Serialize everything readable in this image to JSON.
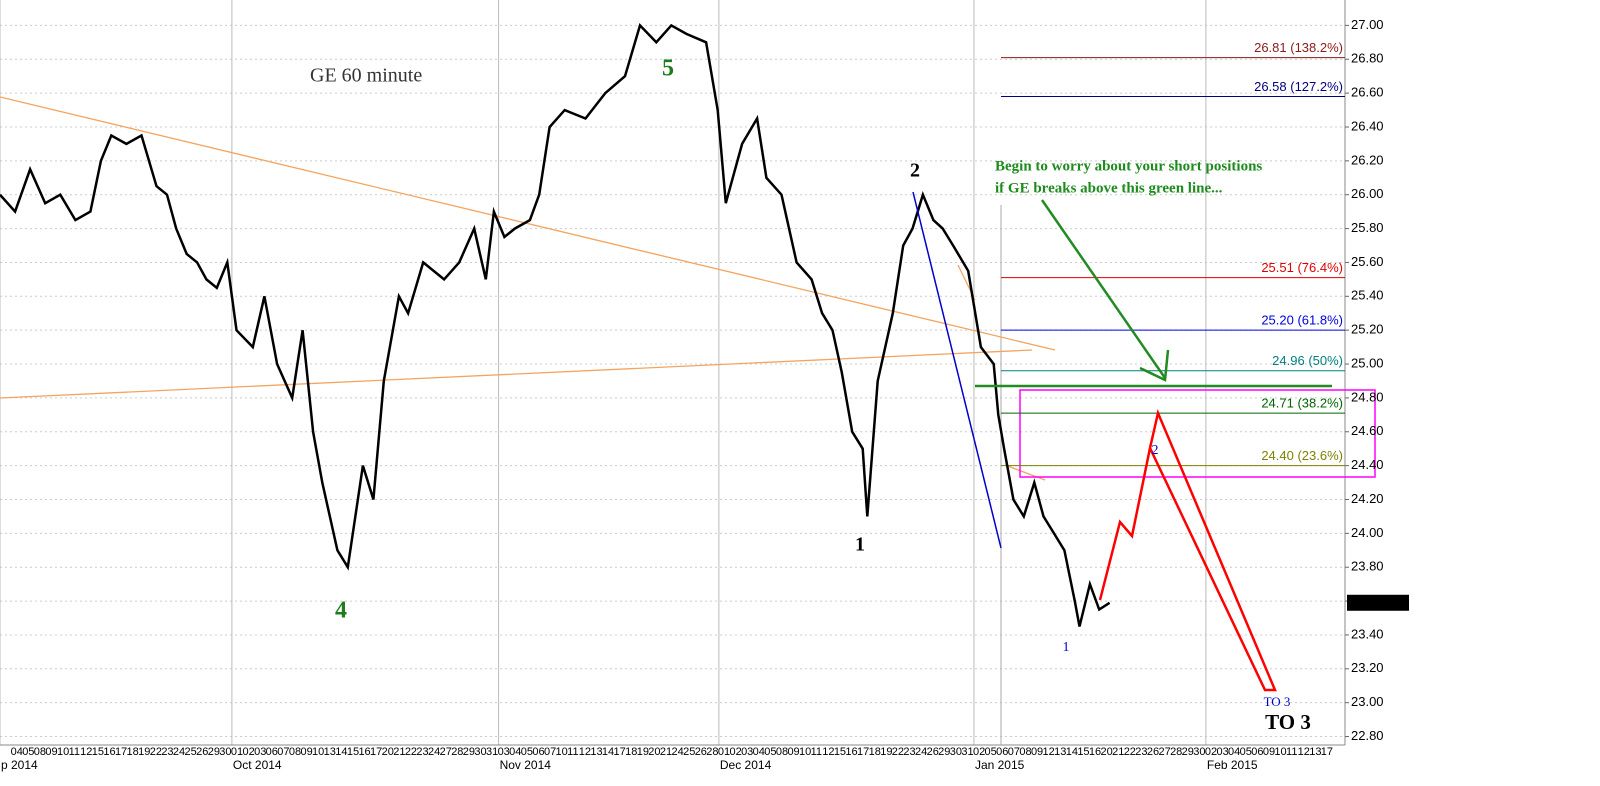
{
  "chart_data": {
    "type": "line",
    "title": "GE 60 minute",
    "xlim": [
      -1,
      115
    ],
    "ylim": [
      22.75,
      27.15
    ],
    "yticks": [
      {
        "value": 22.8,
        "label": "22.80"
      },
      {
        "value": 23.0,
        "label": "23.00"
      },
      {
        "value": 23.2,
        "label": "23.20"
      },
      {
        "value": 23.4,
        "label": "23.40"
      },
      {
        "value": 23.6,
        "label": "23.60"
      },
      {
        "value": 23.8,
        "label": "23.80"
      },
      {
        "value": 24.0,
        "label": "24.00"
      },
      {
        "value": 24.2,
        "label": "24.20"
      },
      {
        "value": 24.4,
        "label": "24.40"
      },
      {
        "value": 24.6,
        "label": "24.60"
      },
      {
        "value": 24.8,
        "label": "24.80"
      },
      {
        "value": 25.0,
        "label": "25.00"
      },
      {
        "value": 25.2,
        "label": "25.20"
      },
      {
        "value": 25.4,
        "label": "25.40"
      },
      {
        "value": 25.6,
        "label": "25.60"
      },
      {
        "value": 25.8,
        "label": "25.80"
      },
      {
        "value": 26.0,
        "label": "26.00"
      },
      {
        "value": 26.2,
        "label": "26.20"
      },
      {
        "value": 26.4,
        "label": "26.40"
      },
      {
        "value": 26.6,
        "label": "26.60"
      },
      {
        "value": 26.8,
        "label": "26.80"
      },
      {
        "value": 27.0,
        "label": "27.00"
      }
    ],
    "xticks": [
      {
        "value": -1,
        "label": "p 2014"
      },
      {
        "value": 19,
        "label": "Oct 2014"
      },
      {
        "value": 42,
        "label": "Nov 2014"
      },
      {
        "value": 61,
        "label": "Dec 2014"
      },
      {
        "value": 83,
        "label": "Jan 2015"
      },
      {
        "value": 103,
        "label": "Feb 2015"
      }
    ],
    "day_labels": [
      "04",
      "05",
      "08",
      "09",
      "10",
      "11",
      "12",
      "15",
      "16",
      "17",
      "18",
      "19",
      "22",
      "23",
      "24",
      "25",
      "26",
      "29",
      "30",
      "01",
      "02",
      "03",
      "06",
      "07",
      "08",
      "09",
      "10",
      "13",
      "14",
      "15",
      "16",
      "17",
      "20",
      "21",
      "22",
      "23",
      "24",
      "27",
      "28",
      "29",
      "30",
      "31",
      "03",
      "04",
      "05",
      "06",
      "07",
      "10",
      "11",
      "12",
      "13",
      "14",
      "17",
      "18",
      "19",
      "20",
      "21",
      "24",
      "25",
      "26",
      "28",
      "01",
      "02",
      "03",
      "04",
      "05",
      "08",
      "09",
      "10",
      "11",
      "12",
      "15",
      "16",
      "17",
      "18",
      "19",
      "22",
      "23",
      "24",
      "26",
      "29",
      "30",
      "31",
      "02",
      "05",
      "06",
      "07",
      "08",
      "09",
      "12",
      "13",
      "14",
      "15",
      "16",
      "20",
      "21",
      "22",
      "23",
      "26",
      "27",
      "28",
      "29",
      "30",
      "02",
      "03",
      "04",
      "05",
      "06",
      "09",
      "10",
      "11",
      "12",
      "13",
      "17"
    ],
    "series": [
      {
        "name": "GE",
        "color": "#000000",
        "x": [
          -1,
          0.3,
          1.6,
          2.9,
          4.2,
          5.5,
          6.8,
          7.7,
          8.6,
          9.9,
          11.2,
          12.5,
          13.4,
          14.2,
          15.1,
          16.0,
          16.8,
          17.7,
          18.6,
          19.4,
          20.8,
          21.8,
          22.9,
          24.2,
          25.1,
          26.0,
          26.8,
          28.1,
          29.0,
          30.3,
          31.2,
          32.1,
          33.4,
          34.2,
          35.5,
          37.3,
          38.6,
          39.9,
          40.9,
          41.6,
          42.5,
          43.4,
          44.7,
          45.5,
          46.4,
          47.7,
          49.5,
          51.2,
          52.9,
          54.2,
          55.6,
          56.9,
          58.2,
          59.9,
          60.9,
          61.6,
          63.0,
          64.3,
          65.1,
          66.4,
          67.7,
          69.0,
          69.9,
          70.8,
          71.6,
          72.5,
          73.4,
          73.8,
          74.7,
          76.0,
          76.9,
          77.7,
          78.6,
          79.5,
          80.3,
          81.2,
          82.5,
          83.6,
          84.7,
          85.1,
          85.6,
          86.4,
          87.3,
          88.2,
          89.0,
          89.9,
          90.8,
          91.7,
          92.1,
          93.0,
          93.8,
          94.7
        ],
        "values": [
          26.0,
          25.9,
          26.15,
          25.95,
          26.0,
          25.85,
          25.9,
          26.2,
          26.35,
          26.3,
          26.35,
          26.05,
          26.0,
          25.8,
          25.65,
          25.6,
          25.5,
          25.45,
          25.6,
          25.2,
          25.1,
          25.4,
          25.0,
          24.8,
          25.2,
          24.6,
          24.3,
          23.9,
          23.8,
          24.4,
          24.2,
          24.9,
          25.4,
          25.3,
          25.6,
          25.5,
          25.6,
          25.8,
          25.5,
          25.9,
          25.75,
          25.8,
          25.85,
          26.0,
          26.4,
          26.5,
          26.45,
          26.6,
          26.7,
          27.0,
          26.9,
          27.0,
          26.95,
          26.9,
          26.5,
          25.95,
          26.3,
          26.45,
          26.1,
          26.0,
          25.6,
          25.5,
          25.3,
          25.2,
          24.95,
          24.6,
          24.5,
          24.1,
          24.9,
          25.3,
          25.7,
          25.8,
          26.0,
          25.85,
          25.8,
          25.7,
          25.55,
          25.1,
          25.0,
          24.7,
          24.5,
          24.2,
          24.1,
          24.3,
          24.1,
          24.0,
          23.9,
          23.6,
          23.45,
          23.7,
          23.55,
          23.59
        ]
      }
    ],
    "last_value": 23.59,
    "fib_levels": [
      {
        "value": 26.81,
        "label": "26.81 (138.2%)",
        "color": "#8b1a1a"
      },
      {
        "value": 26.58,
        "label": "26.58 (127.2%)",
        "color": "#000080"
      },
      {
        "value": 25.51,
        "label": "25.51 (76.4%)",
        "color": "#e00000"
      },
      {
        "value": 25.2,
        "label": "25.20 (61.8%)",
        "color": "#0000dd"
      },
      {
        "value": 24.96,
        "label": "24.96 (50%)",
        "color": "#008080"
      },
      {
        "value": 24.71,
        "label": "24.71 (38.2%)",
        "color": "#006400"
      },
      {
        "value": 24.4,
        "label": "24.40 (23.6%)",
        "color": "#808000"
      }
    ],
    "annotations": [
      "5",
      "4",
      "1",
      "2",
      "1",
      "2",
      "TO 3",
      "TO 3",
      "Begin to worry about your short positions",
      "if GE breaks above this green line..."
    ]
  }
}
